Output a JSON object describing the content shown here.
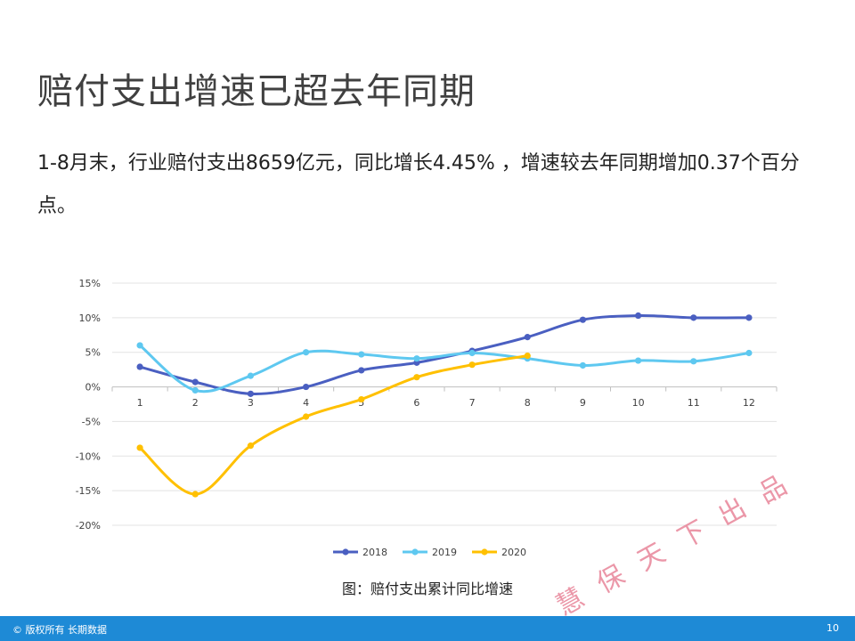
{
  "slide": {
    "title": "赔付支出增速已超去年同期",
    "body": "1-8月末，行业赔付支出8659亿元，同比增长4.45% ，增速较去年同期增加0.37个百分点。",
    "caption": "图：赔付支出累计同比增速",
    "watermark": "慧保天下出品",
    "footer_copyright": "© 版权所有 长期数据",
    "page_number": "10"
  },
  "chart_data": {
    "type": "line",
    "title": "",
    "xlabel": "",
    "ylabel": "",
    "categories": [
      "1",
      "2",
      "3",
      "4",
      "5",
      "6",
      "7",
      "8",
      "9",
      "10",
      "11",
      "12"
    ],
    "y_ticks": [
      "15%",
      "10%",
      "5%",
      "0%",
      "-5%",
      "-10%",
      "-15%",
      "-20%"
    ],
    "ylim": [
      -20,
      15
    ],
    "grid": true,
    "legend_position": "bottom",
    "series": [
      {
        "name": "2018",
        "color": "#4a5fc1",
        "values": [
          2.9,
          0.7,
          -1.0,
          0.0,
          2.4,
          3.5,
          5.2,
          7.2,
          9.7,
          10.3,
          10.0,
          10.0
        ]
      },
      {
        "name": "2019",
        "color": "#5ec8f0",
        "values": [
          6.0,
          -0.5,
          1.6,
          5.0,
          4.7,
          4.1,
          4.9,
          4.1,
          3.1,
          3.8,
          3.7,
          4.9
        ]
      },
      {
        "name": "2020",
        "color": "#ffc000",
        "values": [
          -8.8,
          -15.5,
          -8.5,
          -4.3,
          -1.8,
          1.4,
          3.2,
          4.5,
          null,
          null,
          null,
          null
        ]
      }
    ]
  }
}
